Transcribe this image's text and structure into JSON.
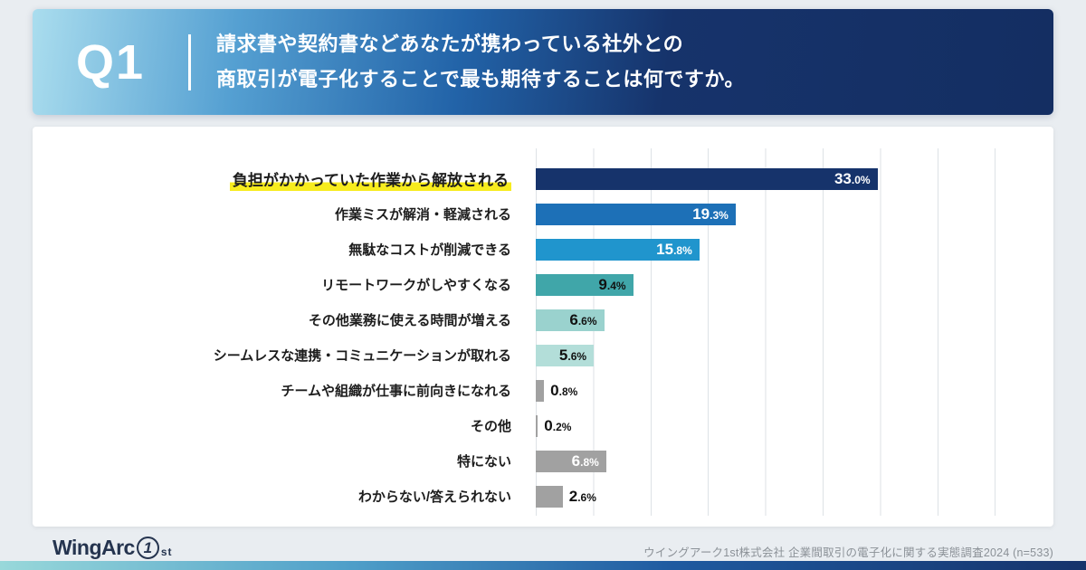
{
  "header": {
    "q_label": "Q1",
    "question_line1": "請求書や契約書などあなたが携わっている社外との",
    "question_line2": "商取引が電子化することで最も期待することは何ですか。"
  },
  "chart_data": {
    "type": "bar",
    "orientation": "horizontal",
    "title": "",
    "categories": [
      "負担がかかっていた作業から解放される",
      "作業ミスが解消・軽減される",
      "無駄なコストが削減できる",
      "リモートワークがしやすくなる",
      "その他業務に使える時間が増える",
      "シームレスな連携・コミュニケーションが取れる",
      "チームや組織が仕事に前向きになれる",
      "その他",
      "特にない",
      "わからない/答えられない"
    ],
    "values": [
      33.0,
      19.3,
      15.8,
      9.4,
      6.6,
      5.6,
      0.8,
      0.2,
      6.8,
      2.6
    ],
    "value_labels": [
      "33.0%",
      "19.3%",
      "15.8%",
      "9.4%",
      "6.6%",
      "5.6%",
      "0.8%",
      "0.2%",
      "6.8%",
      "2.6%"
    ],
    "bar_colors": [
      "#16336b",
      "#1d70b7",
      "#2095cd",
      "#40a6a9",
      "#9ad2ce",
      "#b3ded9",
      "#a1a1a1",
      "#a1a1a1",
      "#a1a1a1",
      "#a1a1a1"
    ],
    "label_colors": [
      "#ffffff",
      "#ffffff",
      "#ffffff",
      "#111111",
      "#111111",
      "#111111",
      "#111111",
      "#111111",
      "#ffffff",
      "#111111"
    ],
    "label_inside": [
      true,
      true,
      true,
      true,
      true,
      true,
      false,
      false,
      true,
      false
    ],
    "highlight_index": 0,
    "xlim": [
      0,
      44.4
    ],
    "grid": true,
    "unit": "%",
    "legend": "none"
  },
  "footer": {
    "logo_part1": "WingArc",
    "logo_part2": "1",
    "logo_part3": "st",
    "source": "ウイングアーク1st株式会社 企業間取引の電子化に関する実態調査2024 (n=533)"
  }
}
